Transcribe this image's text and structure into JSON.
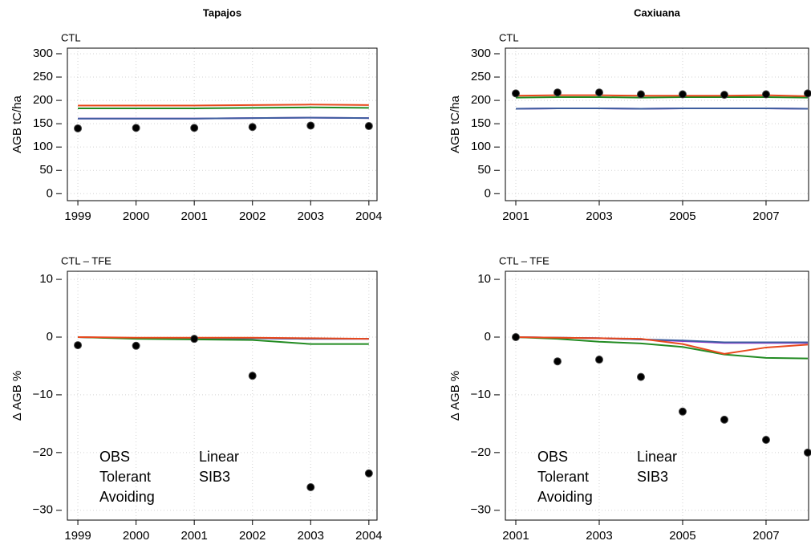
{
  "chart_data": [
    {
      "type": "line",
      "title": "Tapajos",
      "subtitle": "CTL",
      "y_label": "AGB tC/ha",
      "x": [
        1999,
        2000,
        2001,
        2002,
        2003,
        2004
      ],
      "xlim": [
        1998.82,
        2004.14
      ],
      "xticks": [
        1999,
        2000,
        2001,
        2002,
        2003,
        2004
      ],
      "ylim": [
        -15,
        312
      ],
      "yticks": [
        0,
        50,
        100,
        150,
        200,
        250,
        300
      ],
      "grid": true,
      "series": [
        {
          "name": "OBS",
          "color": "#000000",
          "mode": "markers",
          "values": [
            140,
            141,
            141,
            143,
            146,
            145
          ]
        },
        {
          "name": "Tolerant",
          "color": "#9b30d9",
          "mode": "lines",
          "values": [
            161,
            161,
            161,
            162,
            163,
            162
          ]
        },
        {
          "name": "Avoiding",
          "color": "#3f5f9f",
          "mode": "lines",
          "values": [
            161,
            161,
            161,
            162,
            163,
            162
          ]
        },
        {
          "name": "Linear",
          "color": "#228b22",
          "mode": "lines",
          "values": [
            183,
            183,
            183,
            184,
            185,
            184
          ]
        },
        {
          "name": "SIB3",
          "color": "#e8491d",
          "mode": "lines",
          "values": [
            189,
            189,
            189,
            190,
            191,
            190
          ]
        }
      ]
    },
    {
      "type": "line",
      "title": "Caxiuana",
      "subtitle": "CTL",
      "y_label": "AGB tC/ha",
      "x": [
        2001,
        2002,
        2003,
        2004,
        2005,
        2006,
        2007,
        2008
      ],
      "xlim": [
        2000.75,
        2008.02
      ],
      "xticks": [
        2001,
        2003,
        2005,
        2007
      ],
      "ylim": [
        -15,
        312
      ],
      "yticks": [
        0,
        50,
        100,
        150,
        200,
        250,
        300
      ],
      "grid": true,
      "series": [
        {
          "name": "OBS",
          "color": "#000000",
          "mode": "markers",
          "values": [
            215,
            217,
            217,
            213,
            213,
            212,
            213,
            215
          ]
        },
        {
          "name": "Tolerant",
          "color": "#9b30d9",
          "mode": "lines",
          "values": [
            182,
            183,
            183,
            182,
            183,
            183,
            183,
            182
          ]
        },
        {
          "name": "Avoiding",
          "color": "#3f5f9f",
          "mode": "lines",
          "values": [
            182,
            183,
            183,
            182,
            183,
            183,
            183,
            182
          ]
        },
        {
          "name": "Linear",
          "color": "#228b22",
          "mode": "lines",
          "values": [
            206,
            207,
            207,
            206,
            207,
            207,
            207,
            206
          ]
        },
        {
          "name": "SIB3",
          "color": "#e8491d",
          "mode": "lines",
          "values": [
            210,
            211,
            211,
            210,
            210,
            210,
            211,
            209
          ]
        }
      ]
    },
    {
      "type": "line",
      "subtitle": "CTL – TFE",
      "y_label": "Δ AGB %",
      "x": [
        1999,
        2000,
        2001,
        2002,
        2003,
        2004
      ],
      "xlim": [
        1998.82,
        2004.14
      ],
      "xticks": [
        1999,
        2000,
        2001,
        2002,
        2003,
        2004
      ],
      "ylim": [
        -31.7,
        11.4
      ],
      "yticks": [
        {
          "value": -30,
          "label": "−30"
        },
        {
          "value": -20,
          "label": "−20"
        },
        {
          "value": -10,
          "label": "−10"
        },
        0,
        10
      ],
      "grid": true,
      "legend": "bottom-left",
      "series": [
        {
          "name": "OBS",
          "color": "#000000",
          "mode": "markers",
          "values": [
            -1.4,
            -1.5,
            -0.3,
            -6.7,
            -26,
            -23.6
          ]
        },
        {
          "name": "Tolerant",
          "color": "#9b30d9",
          "mode": "lines",
          "values": [
            0,
            -0.2,
            -0.2,
            -0.2,
            -0.3,
            -0.3
          ]
        },
        {
          "name": "Avoiding",
          "color": "#3f5f9f",
          "mode": "lines",
          "values": [
            0,
            -0.2,
            -0.2,
            -0.2,
            -0.3,
            -0.3
          ]
        },
        {
          "name": "Linear",
          "color": "#228b22",
          "mode": "lines",
          "values": [
            0,
            -0.3,
            -0.4,
            -0.5,
            -1.2,
            -1.2
          ]
        },
        {
          "name": "SIB3",
          "color": "#e8491d",
          "mode": "lines",
          "values": [
            0,
            -0.1,
            -0.1,
            -0.1,
            -0.2,
            -0.3
          ]
        }
      ]
    },
    {
      "type": "line",
      "subtitle": "CTL – TFE",
      "y_label": "Δ AGB %",
      "x": [
        2001,
        2002,
        2003,
        2004,
        2005,
        2006,
        2007,
        2008
      ],
      "xlim": [
        2000.75,
        2008.02
      ],
      "xticks": [
        2001,
        2003,
        2005,
        2007
      ],
      "ylim": [
        -31.7,
        11.4
      ],
      "yticks": [
        {
          "value": -30,
          "label": "−30"
        },
        {
          "value": -20,
          "label": "−20"
        },
        {
          "value": -10,
          "label": "−10"
        },
        0,
        10
      ],
      "grid": true,
      "legend": "bottom-left",
      "series": [
        {
          "name": "OBS",
          "color": "#000000",
          "mode": "markers",
          "values": [
            0,
            -4.2,
            -3.9,
            -6.9,
            -12.9,
            -14.3,
            -17.8,
            -20
          ]
        },
        {
          "name": "Tolerant",
          "color": "#9b30d9",
          "mode": "lines",
          "values": [
            0,
            -0.1,
            -0.2,
            -0.4,
            -0.7,
            -1.0,
            -1.0,
            -1.0
          ]
        },
        {
          "name": "Avoiding",
          "color": "#3f5f9f",
          "mode": "lines",
          "values": [
            0,
            -0.1,
            -0.2,
            -0.4,
            -0.6,
            -0.9,
            -0.9,
            -0.9
          ]
        },
        {
          "name": "Linear",
          "color": "#228b22",
          "mode": "lines",
          "values": [
            0,
            -0.3,
            -0.8,
            -1.1,
            -1.7,
            -3.0,
            -3.6,
            -3.7
          ]
        },
        {
          "name": "SIB3",
          "color": "#e8491d",
          "mode": "lines",
          "values": [
            0,
            -0.1,
            -0.2,
            -0.3,
            -1.2,
            -2.9,
            -1.8,
            -1.3
          ]
        }
      ]
    }
  ]
}
